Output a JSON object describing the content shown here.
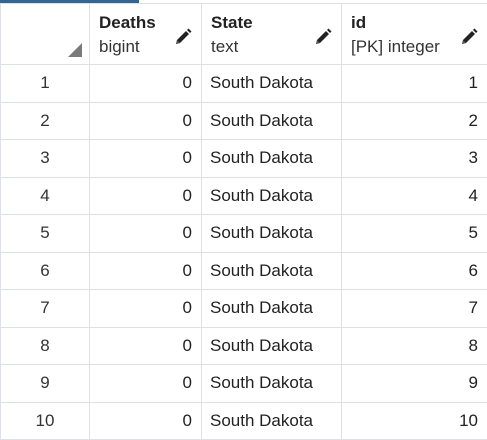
{
  "columns": [
    {
      "name": "Deaths",
      "type": "bigint",
      "icon": "pencil-icon"
    },
    {
      "name": "State",
      "type": "text",
      "icon": "pencil-icon"
    },
    {
      "name": "id",
      "type": "[PK] integer",
      "icon": "pencil-icon"
    }
  ],
  "rows": [
    {
      "num": "1",
      "deaths": "0",
      "state": "South Dakota",
      "id": "1"
    },
    {
      "num": "2",
      "deaths": "0",
      "state": "South Dakota",
      "id": "2"
    },
    {
      "num": "3",
      "deaths": "0",
      "state": "South Dakota",
      "id": "3"
    },
    {
      "num": "4",
      "deaths": "0",
      "state": "South Dakota",
      "id": "4"
    },
    {
      "num": "5",
      "deaths": "0",
      "state": "South Dakota",
      "id": "5"
    },
    {
      "num": "6",
      "deaths": "0",
      "state": "South Dakota",
      "id": "6"
    },
    {
      "num": "7",
      "deaths": "0",
      "state": "South Dakota",
      "id": "7"
    },
    {
      "num": "8",
      "deaths": "0",
      "state": "South Dakota",
      "id": "8"
    },
    {
      "num": "9",
      "deaths": "0",
      "state": "South Dakota",
      "id": "9"
    },
    {
      "num": "10",
      "deaths": "0",
      "state": "South Dakota",
      "id": "10"
    }
  ],
  "colors": {
    "grid_border": "#dde0e6",
    "tab_accent": "#326690"
  }
}
